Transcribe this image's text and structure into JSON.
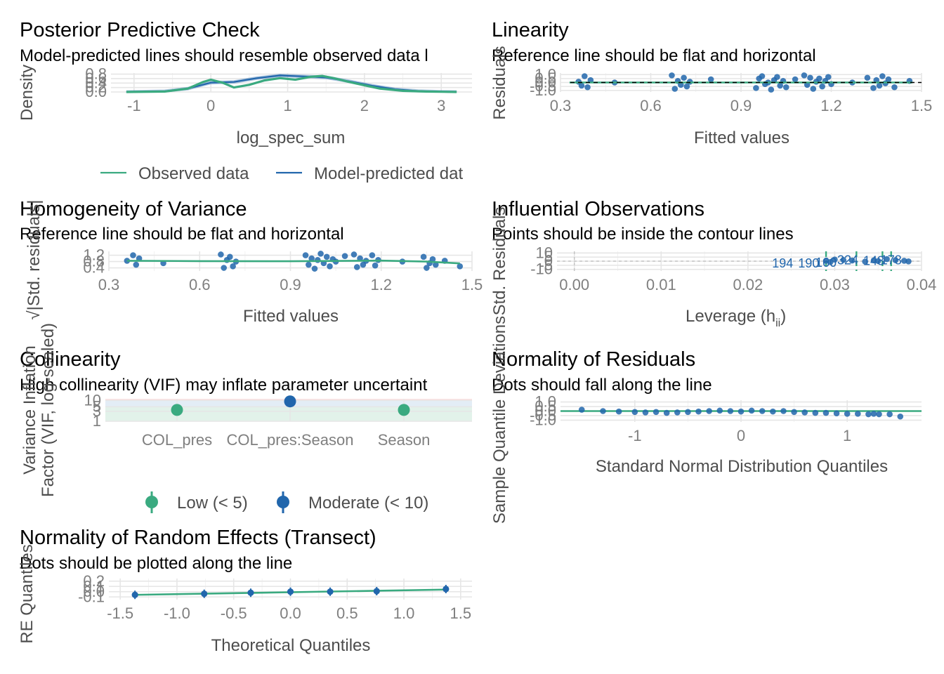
{
  "colors": {
    "observed": "#3aaa80",
    "predicted": "#2166ac",
    "low": "#3aaa80",
    "moderate": "#2166ac",
    "reference": "#000000",
    "grid": "#e6e6e6",
    "tick": "#7f7f7f",
    "label": "#4d4d4d"
  },
  "panels": {
    "ppc": {
      "title": "Posterior Predictive Check",
      "subtitle": "Model-predicted lines should resemble observed data l",
      "xlabel": "log_spec_sum",
      "ylabel": "Density",
      "xticks": [
        "-1",
        "0",
        "1",
        "2",
        "3"
      ],
      "yticks": [
        "0.0",
        "0.2",
        "0.4",
        "0.6",
        "0.8"
      ],
      "legend": [
        "Observed data",
        "Model-predicted dat"
      ]
    },
    "linearity": {
      "title": "Linearity",
      "subtitle": "Reference line should be flat and horizontal",
      "xlabel": "Fitted values",
      "ylabel": "Residuals",
      "xticks": [
        "0.3",
        "0.6",
        "0.9",
        "1.2",
        "1.5"
      ],
      "yticks": [
        "1.0",
        "0.5",
        "0.0",
        "-0.5",
        "-1.0"
      ]
    },
    "homogeneity": {
      "title": "Homogeneity of Variance",
      "subtitle": "Reference line should be flat and horizontal",
      "xlabel": "Fitted values",
      "ylabel": "√|Std. residuals|",
      "xticks": [
        "0.3",
        "0.6",
        "0.9",
        "1.2",
        "1.5"
      ],
      "yticks": [
        "1.2",
        "0.8",
        "0.4"
      ]
    },
    "influential": {
      "title": "Influential Observations",
      "subtitle": "Points should be inside the contour lines",
      "xlabel": "Leverage (hii)",
      "xlabel_main": "Leverage (h",
      "xlabel_sub": "ii",
      "xlabel_close": ")",
      "ylabel": "Std. Residuals",
      "xticks": [
        "0.00",
        "0.01",
        "0.02",
        "0.03",
        "0.04"
      ],
      "yticks": [
        "10",
        "5",
        "0",
        "-5",
        "-10"
      ],
      "point_labels": [
        "194",
        "190",
        "160",
        "324",
        "178",
        "148"
      ]
    },
    "collinearity": {
      "title": "Collinearity",
      "subtitle": "High collinearity (VIF) may inflate parameter uncertaint",
      "ylabel_line1": "Variance Inflation",
      "ylabel_line2": "Factor (VIF, log-scaled)",
      "xticks": [
        "COL_pres",
        "COL_pres:Season",
        "Season"
      ],
      "yticks": [
        "10",
        "5",
        "3",
        "1"
      ],
      "legend": [
        "Low (< 5)",
        "Moderate (< 10)"
      ]
    },
    "normality": {
      "title": "Normality of Residuals",
      "subtitle": "Dots should fall along the line",
      "xlabel": "Standard Normal Distribution Quantiles",
      "ylabel": "Sample Quantile Deviations",
      "xticks": [
        "-1",
        "0",
        "1"
      ],
      "yticks": [
        "1.0",
        "0.5",
        "0.0",
        "-0.5",
        "-1.0"
      ]
    },
    "random_effects": {
      "title": "Normality of Random Effects (Transect)",
      "subtitle": "Dots should be plotted along the line",
      "xlabel": "Theoretical Quantiles",
      "ylabel": "RE Quantiles",
      "xticks": [
        "-1.5",
        "-1.0",
        "-0.5",
        "0.0",
        "0.5",
        "1.0",
        "1.5"
      ],
      "yticks": [
        "0.2",
        "0.1",
        "0.0",
        "-0.1"
      ]
    }
  },
  "chart_data": [
    {
      "type": "line",
      "panel": "Posterior Predictive Check",
      "xlim": [
        -1.3,
        3.4
      ],
      "ylim": [
        0,
        0.85
      ],
      "series": [
        {
          "name": "Observed data",
          "x": [
            -1.1,
            -0.6,
            -0.3,
            -0.1,
            0.0,
            0.15,
            0.3,
            0.5,
            0.7,
            0.9,
            1.1,
            1.3,
            1.45,
            1.6,
            1.8,
            2.0,
            2.2,
            2.5,
            2.8,
            3.0,
            3.2
          ],
          "y": [
            0.0,
            0.02,
            0.15,
            0.45,
            0.55,
            0.42,
            0.2,
            0.32,
            0.52,
            0.62,
            0.55,
            0.68,
            0.72,
            0.62,
            0.45,
            0.3,
            0.15,
            0.05,
            0.02,
            0.01,
            0.0
          ]
        },
        {
          "name": "Model-predicted data",
          "x": [
            -1.1,
            -0.6,
            -0.3,
            0.0,
            0.3,
            0.6,
            0.9,
            1.2,
            1.5,
            1.8,
            2.1,
            2.4,
            2.7,
            3.0,
            3.2
          ],
          "y": [
            0.0,
            0.03,
            0.15,
            0.42,
            0.45,
            0.62,
            0.74,
            0.7,
            0.65,
            0.48,
            0.28,
            0.12,
            0.04,
            0.01,
            0.0
          ]
        }
      ]
    },
    {
      "type": "scatter",
      "panel": "Linearity",
      "xlim": [
        0.3,
        1.5
      ],
      "ylim": [
        -1.2,
        1.2
      ],
      "x": [
        0.36,
        0.37,
        0.38,
        0.39,
        0.4,
        0.48,
        0.67,
        0.68,
        0.69,
        0.7,
        0.71,
        0.72,
        0.73,
        0.8,
        0.95,
        0.96,
        0.97,
        0.98,
        0.99,
        1.0,
        1.01,
        1.02,
        1.03,
        1.04,
        1.05,
        1.08,
        1.11,
        1.12,
        1.13,
        1.14,
        1.15,
        1.16,
        1.17,
        1.18,
        1.19,
        1.2,
        1.27,
        1.32,
        1.34,
        1.35,
        1.36,
        1.37,
        1.38,
        1.39,
        1.41,
        1.46
      ],
      "y": [
        0.1,
        -0.4,
        0.8,
        -0.6,
        0.3,
        0.0,
        0.9,
        -0.8,
        0.2,
        -0.3,
        0.6,
        -0.5,
        0.1,
        0.4,
        -0.7,
        0.5,
        0.8,
        -0.2,
        0.0,
        -0.9,
        0.3,
        0.7,
        -0.4,
        0.2,
        -0.6,
        0.4,
        0.9,
        -0.3,
        0.6,
        -0.8,
        0.1,
        0.5,
        -0.5,
        0.2,
        0.7,
        -0.2,
        0.0,
        0.6,
        -0.7,
        0.3,
        -0.4,
        0.8,
        -0.1,
        0.4,
        -0.6,
        0.2
      ],
      "reference_y": 0,
      "smooth_y": 0
    },
    {
      "type": "scatter",
      "panel": "Homogeneity of Variance",
      "xlim": [
        0.3,
        1.5
      ],
      "ylim": [
        0.2,
        1.45
      ],
      "x": [
        0.36,
        0.38,
        0.39,
        0.4,
        0.48,
        0.67,
        0.68,
        0.69,
        0.7,
        0.71,
        0.72,
        0.95,
        0.96,
        0.97,
        0.98,
        0.99,
        1.0,
        1.01,
        1.02,
        1.03,
        1.04,
        1.05,
        1.08,
        1.11,
        1.12,
        1.13,
        1.14,
        1.15,
        1.17,
        1.18,
        1.19,
        1.27,
        1.34,
        1.35,
        1.36,
        1.37,
        1.38,
        1.41,
        1.46
      ],
      "y": [
        0.85,
        1.2,
        0.6,
        1.0,
        0.7,
        1.25,
        0.4,
        0.9,
        1.1,
        0.5,
        0.8,
        1.2,
        0.6,
        1.0,
        0.35,
        0.9,
        1.3,
        0.7,
        1.1,
        0.5,
        0.95,
        0.8,
        1.15,
        1.25,
        0.45,
        1.0,
        0.6,
        0.85,
        1.2,
        0.55,
        0.9,
        0.8,
        1.1,
        0.4,
        0.7,
        0.95,
        0.6,
        0.85,
        0.5
      ],
      "smooth_x": [
        0.36,
        0.6,
        0.9,
        1.2,
        1.35,
        1.46
      ],
      "smooth_y": [
        0.85,
        0.83,
        0.82,
        0.86,
        0.8,
        0.68
      ]
    },
    {
      "type": "scatter",
      "panel": "Influential Observations",
      "xlim": [
        -0.002,
        0.04
      ],
      "ylim": [
        -12,
        12
      ],
      "x": [
        0.029,
        0.0295,
        0.03,
        0.031,
        0.032,
        0.0335,
        0.0345,
        0.035,
        0.036,
        0.037,
        0.038,
        0.0385
      ],
      "y": [
        0.5,
        -1.0,
        2.0,
        1.5,
        0.8,
        -0.5,
        1.0,
        0.2,
        2.5,
        1.2,
        0.5,
        -0.3
      ],
      "labels": [
        {
          "text": "194",
          "x": 0.024,
          "y": -2.5
        },
        {
          "text": "190",
          "x": 0.027,
          "y": -2.5
        },
        {
          "text": "160",
          "x": 0.029,
          "y": -1.5
        },
        {
          "text": "324",
          "x": 0.0315,
          "y": 1.5
        },
        {
          "text": "178",
          "x": 0.0365,
          "y": 1.5
        },
        {
          "text": "148",
          "x": 0.0345,
          "y": 0.5
        }
      ],
      "contour_x": [
        0.029,
        0.0325,
        0.0355,
        0.0365
      ]
    },
    {
      "type": "scatter",
      "panel": "Collinearity",
      "categories": [
        "COL_pres",
        "COL_pres:Season",
        "Season"
      ],
      "values": [
        3.5,
        9.0,
        3.5
      ],
      "groups": [
        "Low (< 5)",
        "Moderate (< 10)",
        "Low (< 5)"
      ],
      "y_scale": "log",
      "ylim": [
        1,
        12
      ]
    },
    {
      "type": "scatter",
      "panel": "Normality of Residuals",
      "xlim": [
        -1.7,
        1.7
      ],
      "ylim": [
        -1.2,
        1.2
      ],
      "x": [
        -1.5,
        -1.3,
        -1.15,
        -1.0,
        -0.9,
        -0.8,
        -0.7,
        -0.6,
        -0.5,
        -0.4,
        -0.3,
        -0.2,
        -0.1,
        0.0,
        0.1,
        0.2,
        0.3,
        0.4,
        0.5,
        0.6,
        0.7,
        0.8,
        0.9,
        1.0,
        1.1,
        1.2,
        1.25,
        1.3,
        1.4,
        1.5
      ],
      "y": [
        0.15,
        0.0,
        -0.05,
        -0.1,
        -0.15,
        -0.1,
        -0.2,
        -0.15,
        -0.1,
        -0.05,
        0.0,
        0.05,
        0.0,
        -0.05,
        0.05,
        0.0,
        -0.05,
        0.0,
        -0.1,
        -0.15,
        -0.2,
        -0.2,
        -0.25,
        -0.3,
        -0.3,
        -0.35,
        -0.3,
        -0.35,
        -0.35,
        -0.6
      ]
    },
    {
      "type": "scatter",
      "panel": "Normality of Random Effects (Transect)",
      "xlim": [
        -1.6,
        1.6
      ],
      "ylim": [
        -0.15,
        0.25
      ],
      "x": [
        -1.37,
        -0.76,
        -0.35,
        0.0,
        0.35,
        0.76,
        1.37
      ],
      "y": [
        -0.06,
        -0.04,
        -0.02,
        0.0,
        0.0,
        0.01,
        0.05
      ],
      "line_x": [
        -1.37,
        1.37
      ],
      "line_y": [
        -0.06,
        0.04
      ]
    }
  ]
}
